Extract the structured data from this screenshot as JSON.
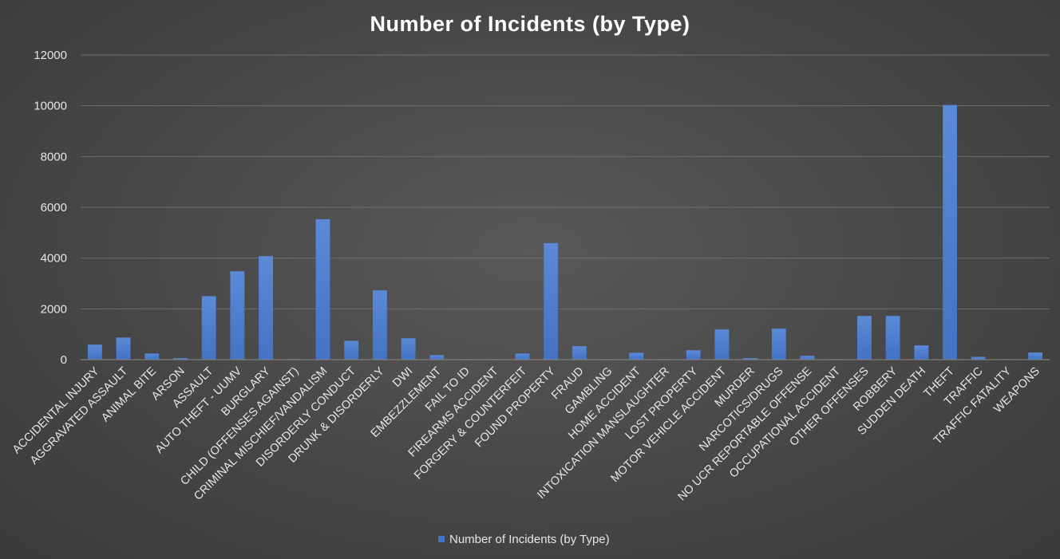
{
  "chart_data": {
    "type": "bar",
    "title": "Number of Incidents (by Type)",
    "xlabel": "",
    "ylabel": "",
    "ylim": [
      0,
      12000
    ],
    "yticks": [
      0,
      2000,
      4000,
      6000,
      8000,
      10000,
      12000
    ],
    "grid": true,
    "legend": "bottom",
    "bar_color": "#4472c4",
    "categories": [
      "ACCIDENTAL INJURY",
      "AGGRAVATED ASSAULT",
      "ANIMAL BITE",
      "ARSON",
      "ASSAULT",
      "AUTO THEFT - UUMV",
      "BURGLARY",
      "CHILD (OFFENSES AGAINST)",
      "CRIMINAL MISCHIEF/VANDALISM",
      "DISORDERLY CONDUCT",
      "DRUNK & DISORDERLY",
      "DWI",
      "EMBEZZLEMENT",
      "FAIL TO ID",
      "FIREARMS ACCIDENT",
      "FORGERY & COUNTERFEIT",
      "FOUND PROPERTY",
      "FRAUD",
      "GAMBLING",
      "HOME ACCIDENT",
      "INTOXICATION MANSLAUGHTER",
      "LOST PROPERTY",
      "MOTOR VEHICLE ACCIDENT",
      "MURDER",
      "NARCOTICS/DRUGS",
      "NO UCR REPORTABLE OFFENSE",
      "OCCUPATIONAL ACCIDENT",
      "OTHER OFFENSES",
      "ROBBERY",
      "SUDDEN DEATH",
      "THEFT",
      "TRAFFIC",
      "TRAFFIC FATALITY",
      "WEAPONS"
    ],
    "series": [
      {
        "name": "Number of Incidents (by Type)",
        "values": [
          590,
          870,
          240,
          60,
          2500,
          3480,
          4080,
          20,
          5530,
          740,
          2730,
          840,
          180,
          10,
          5,
          240,
          4590,
          530,
          10,
          270,
          5,
          370,
          1190,
          60,
          1220,
          150,
          10,
          1720,
          1720,
          560,
          10030,
          110,
          20,
          280
        ]
      }
    ]
  }
}
